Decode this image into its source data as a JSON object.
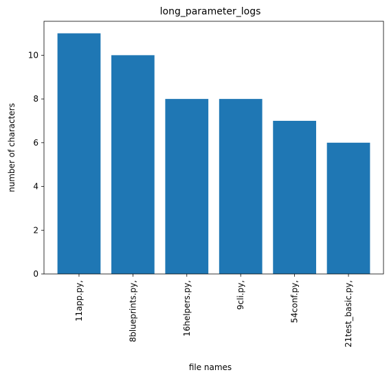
{
  "chart_data": {
    "type": "bar",
    "title": "long_parameter_logs",
    "xlabel": "file names",
    "ylabel": "number of characters",
    "categories": [
      "11app.py,",
      "8blueprints.py,",
      "16helpers.py,",
      "9cli.py,",
      "54conf.py,",
      "21test_basic.py,"
    ],
    "values": [
      11,
      10,
      8,
      8,
      7,
      6
    ],
    "ylim": [
      0,
      11.55
    ],
    "yticks": [
      0,
      2,
      4,
      6,
      8,
      10
    ],
    "bar_color": "#1f77b4",
    "grid": false,
    "legend": "none"
  }
}
